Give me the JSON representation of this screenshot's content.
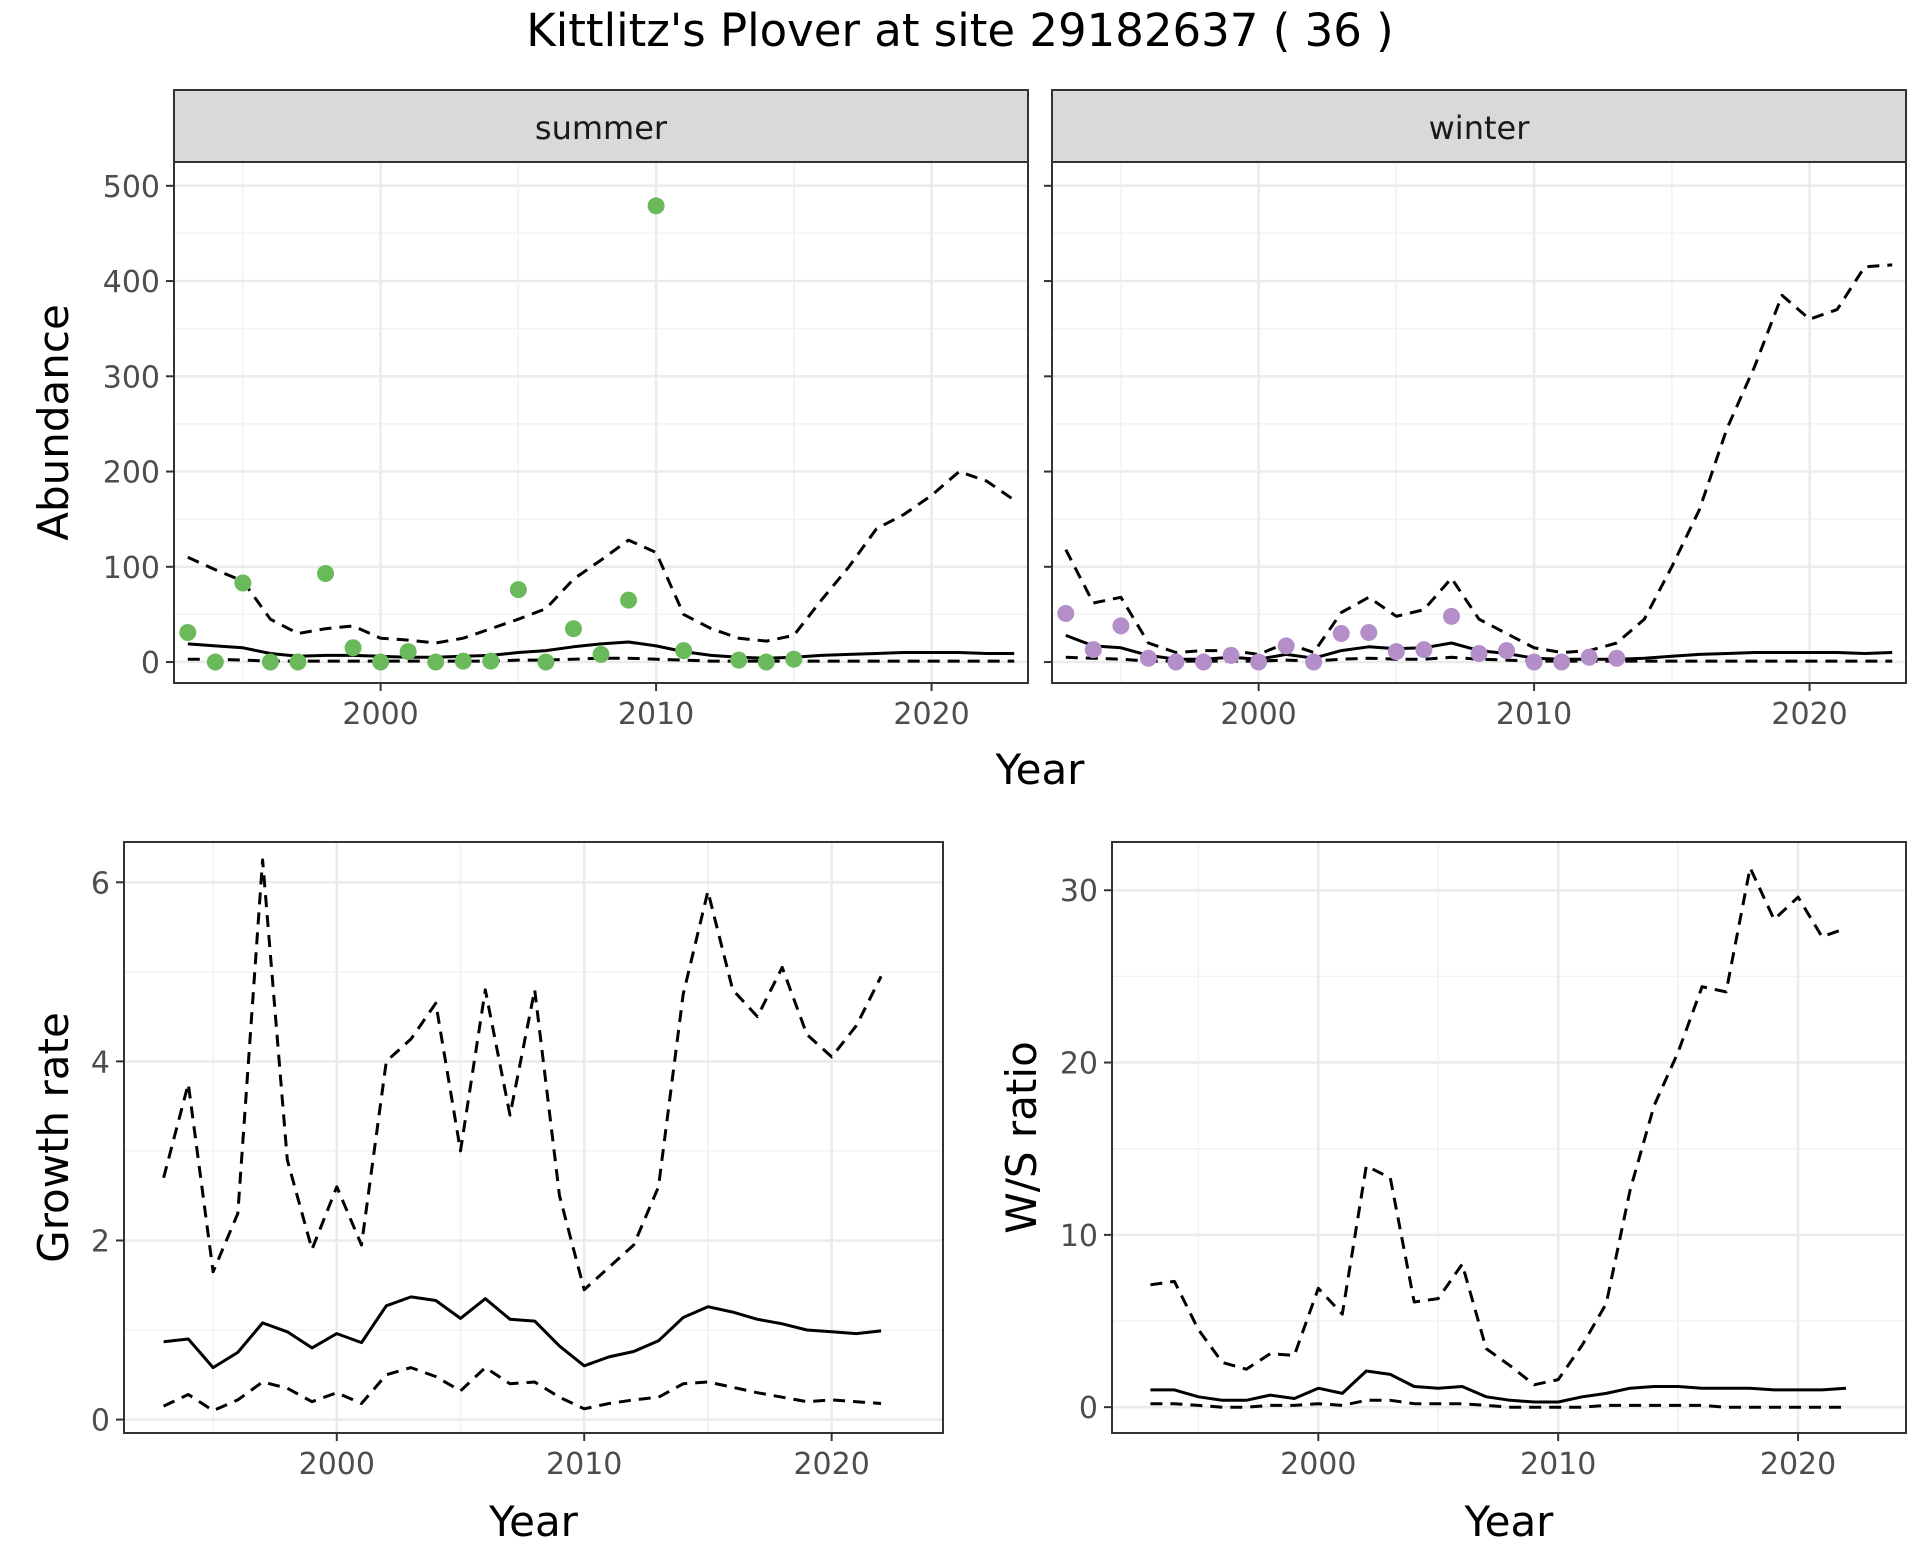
{
  "title": "Kittlitz's Plover at site 29182637 ( 36 )",
  "colors": {
    "summer_points": "#6aba5c",
    "winter_points": "#b48ec9",
    "line": "#000000",
    "strip": "#d9d9d9",
    "grid": "#ebebeb"
  },
  "chart_data": [
    {
      "type": "line",
      "panel": "summer",
      "xlabel": "Year",
      "ylabel": "Abundance",
      "xlim": [
        1992.5,
        2023.5
      ],
      "ylim": [
        -22,
        525
      ],
      "xticks": [
        2000,
        2010,
        2020
      ],
      "yticks": [
        0,
        100,
        200,
        300,
        400,
        500
      ],
      "grid": true,
      "points": {
        "x": [
          1993,
          1994,
          1995,
          1996,
          1997,
          1998,
          1999,
          2000,
          2001,
          2002,
          2003,
          2004,
          2005,
          2006,
          2007,
          2008,
          2009,
          2010,
          2011,
          2013,
          2014,
          2015
        ],
        "y": [
          31,
          0,
          83,
          0,
          0,
          93,
          15,
          0,
          11,
          0,
          1,
          1,
          76,
          0,
          35,
          8,
          65,
          479,
          12,
          2,
          0,
          3
        ]
      },
      "series": [
        {
          "style": "solid",
          "x": [
            1993,
            1994,
            1995,
            1996,
            1997,
            1998,
            1999,
            2000,
            2001,
            2002,
            2003,
            2004,
            2005,
            2006,
            2007,
            2008,
            2009,
            2010,
            2011,
            2012,
            2013,
            2014,
            2015,
            2016,
            2017,
            2018,
            2019,
            2020,
            2021,
            2022,
            2023
          ],
          "y": [
            19,
            17,
            15,
            9,
            6,
            7,
            7,
            6,
            5,
            5,
            6,
            7,
            10,
            12,
            16,
            19,
            21,
            17,
            11,
            7,
            5,
            4,
            5,
            7,
            8,
            9,
            10,
            10,
            10,
            9,
            9
          ]
        },
        {
          "style": "dashed",
          "x": [
            1993,
            1994,
            1995,
            1996,
            1997,
            1998,
            1999,
            2000,
            2001,
            2002,
            2003,
            2004,
            2005,
            2006,
            2007,
            2008,
            2009,
            2010,
            2011,
            2012,
            2013,
            2014,
            2015,
            2016,
            2017,
            2018,
            2019,
            2020,
            2021,
            2022,
            2023
          ],
          "y": [
            110,
            97,
            85,
            45,
            30,
            35,
            38,
            25,
            23,
            20,
            25,
            35,
            45,
            56,
            87,
            107,
            128,
            115,
            50,
            35,
            25,
            22,
            28,
            65,
            100,
            140,
            155,
            175,
            200,
            190,
            170
          ]
        },
        {
          "style": "dashed",
          "x": [
            1993,
            1994,
            1995,
            1996,
            1997,
            1998,
            1999,
            2000,
            2001,
            2002,
            2003,
            2004,
            2005,
            2006,
            2007,
            2008,
            2009,
            2010,
            2011,
            2012,
            2013,
            2014,
            2015,
            2016,
            2017,
            2018,
            2019,
            2020,
            2021,
            2022,
            2023
          ],
          "y": [
            3,
            3,
            2,
            1,
            1,
            1,
            1,
            1,
            1,
            1,
            1,
            1,
            2,
            2,
            3,
            4,
            4,
            3,
            2,
            1,
            1,
            1,
            1,
            1,
            1,
            1,
            1,
            1,
            1,
            1,
            1
          ]
        }
      ]
    },
    {
      "type": "line",
      "panel": "winter",
      "xlabel": "Year",
      "ylabel": "",
      "xlim": [
        1992.5,
        2023.5
      ],
      "ylim": [
        -22,
        525
      ],
      "xticks": [
        2000,
        2010,
        2020
      ],
      "yticks": [
        0,
        100,
        200,
        300,
        400,
        500
      ],
      "grid": true,
      "points": {
        "x": [
          1993,
          1994,
          1995,
          1996,
          1997,
          1998,
          1999,
          2000,
          2001,
          2002,
          2003,
          2004,
          2005,
          2006,
          2007,
          2008,
          2009,
          2010,
          2011,
          2012,
          2013
        ],
        "y": [
          51,
          13,
          38,
          4,
          0,
          0,
          7,
          0,
          17,
          0,
          30,
          31,
          11,
          13,
          48,
          9,
          12,
          0,
          0,
          5,
          4
        ]
      },
      "series": [
        {
          "style": "solid",
          "x": [
            1993,
            1994,
            1995,
            1996,
            1997,
            1998,
            1999,
            2000,
            2001,
            2002,
            2003,
            2004,
            2005,
            2006,
            2007,
            2008,
            2009,
            2010,
            2011,
            2012,
            2013,
            2014,
            2015,
            2016,
            2017,
            2018,
            2019,
            2020,
            2021,
            2022,
            2023
          ],
          "y": [
            28,
            17,
            15,
            7,
            3,
            3,
            5,
            3,
            8,
            4,
            12,
            16,
            14,
            15,
            20,
            12,
            9,
            4,
            3,
            3,
            3,
            4,
            6,
            8,
            9,
            10,
            10,
            10,
            10,
            9,
            10
          ]
        },
        {
          "style": "dashed",
          "x": [
            1993,
            1994,
            1995,
            1996,
            1997,
            1998,
            1999,
            2000,
            2001,
            2002,
            2003,
            2004,
            2005,
            2006,
            2007,
            2008,
            2009,
            2010,
            2011,
            2012,
            2013,
            2014,
            2015,
            2016,
            2017,
            2018,
            2019,
            2020,
            2021,
            2022,
            2023
          ],
          "y": [
            118,
            62,
            68,
            20,
            10,
            12,
            12,
            8,
            20,
            10,
            52,
            68,
            48,
            55,
            88,
            45,
            30,
            15,
            10,
            12,
            20,
            45,
            100,
            160,
            245,
            310,
            385,
            360,
            370,
            415,
            417
          ]
        },
        {
          "style": "dashed",
          "x": [
            1993,
            1994,
            1995,
            1996,
            1997,
            1998,
            1999,
            2000,
            2001,
            2002,
            2003,
            2004,
            2005,
            2006,
            2007,
            2008,
            2009,
            2010,
            2011,
            2012,
            2013,
            2014,
            2015,
            2016,
            2017,
            2018,
            2019,
            2020,
            2021,
            2022,
            2023
          ],
          "y": [
            5,
            4,
            3,
            1,
            1,
            1,
            1,
            1,
            2,
            1,
            3,
            4,
            3,
            3,
            5,
            3,
            2,
            1,
            1,
            1,
            1,
            1,
            1,
            1,
            1,
            1,
            1,
            1,
            1,
            1,
            1
          ]
        }
      ]
    },
    {
      "type": "line",
      "panel": "growth",
      "xlabel": "Year",
      "ylabel": "Growth rate",
      "xlim": [
        1991.4,
        2024.5
      ],
      "ylim": [
        -0.15,
        6.45
      ],
      "xticks": [
        2000,
        2010,
        2020
      ],
      "yticks": [
        0,
        2,
        4,
        6
      ],
      "grid": true,
      "series": [
        {
          "style": "solid",
          "x": [
            1993,
            1994,
            1995,
            1996,
            1997,
            1998,
            1999,
            2000,
            2001,
            2002,
            2003,
            2004,
            2005,
            2006,
            2007,
            2008,
            2009,
            2010,
            2011,
            2012,
            2013,
            2014,
            2015,
            2016,
            2017,
            2018,
            2019,
            2020,
            2021,
            2022
          ],
          "y": [
            0.87,
            0.9,
            0.58,
            0.75,
            1.08,
            0.98,
            0.8,
            0.96,
            0.86,
            1.27,
            1.37,
            1.33,
            1.13,
            1.35,
            1.12,
            1.1,
            0.82,
            0.6,
            0.7,
            0.76,
            0.88,
            1.14,
            1.26,
            1.2,
            1.12,
            1.07,
            1.0,
            0.98,
            0.96,
            0.99
          ]
        },
        {
          "style": "dashed",
          "x": [
            1993,
            1994,
            1995,
            1996,
            1997,
            1998,
            1999,
            2000,
            2001,
            2002,
            2003,
            2004,
            2005,
            2006,
            2007,
            2008,
            2009,
            2010,
            2011,
            2012,
            2013,
            2014,
            2015,
            2016,
            2017,
            2018,
            2019,
            2020,
            2021,
            2022
          ],
          "y": [
            2.7,
            3.75,
            1.65,
            2.3,
            6.25,
            2.9,
            1.9,
            2.6,
            1.95,
            4.0,
            4.25,
            4.65,
            3.0,
            4.8,
            3.4,
            4.8,
            2.5,
            1.45,
            1.7,
            1.95,
            2.6,
            4.75,
            5.9,
            4.8,
            4.5,
            5.05,
            4.3,
            4.05,
            4.4,
            4.95
          ]
        },
        {
          "style": "dashed",
          "x": [
            1993,
            1994,
            1995,
            1996,
            1997,
            1998,
            1999,
            2000,
            2001,
            2002,
            2003,
            2004,
            2005,
            2006,
            2007,
            2008,
            2009,
            2010,
            2011,
            2012,
            2013,
            2014,
            2015,
            2016,
            2017,
            2018,
            2019,
            2020,
            2021,
            2022
          ],
          "y": [
            0.15,
            0.28,
            0.1,
            0.22,
            0.42,
            0.35,
            0.2,
            0.3,
            0.18,
            0.5,
            0.58,
            0.48,
            0.32,
            0.58,
            0.4,
            0.42,
            0.25,
            0.12,
            0.18,
            0.22,
            0.25,
            0.4,
            0.42,
            0.36,
            0.3,
            0.25,
            0.2,
            0.22,
            0.2,
            0.18
          ]
        }
      ]
    },
    {
      "type": "line",
      "panel": "ws_ratio",
      "xlabel": "Year",
      "ylabel": "W/S ratio",
      "xlim": [
        1991.4,
        2024.5
      ],
      "ylim": [
        -1.5,
        32.8
      ],
      "xticks": [
        2000,
        2010,
        2020
      ],
      "yticks": [
        0,
        10,
        20,
        30
      ],
      "grid": true,
      "series": [
        {
          "style": "solid",
          "x": [
            1993,
            1994,
            1995,
            1996,
            1997,
            1998,
            1999,
            2000,
            2001,
            2002,
            2003,
            2004,
            2005,
            2006,
            2007,
            2008,
            2009,
            2010,
            2011,
            2012,
            2013,
            2014,
            2015,
            2016,
            2017,
            2018,
            2019,
            2020,
            2021,
            2022
          ],
          "y": [
            1.0,
            1.0,
            0.6,
            0.4,
            0.4,
            0.7,
            0.5,
            1.1,
            0.8,
            2.1,
            1.9,
            1.2,
            1.1,
            1.2,
            0.6,
            0.4,
            0.3,
            0.3,
            0.6,
            0.8,
            1.1,
            1.2,
            1.2,
            1.1,
            1.1,
            1.1,
            1.0,
            1.0,
            1.0,
            1.1
          ]
        },
        {
          "style": "dashed",
          "x": [
            1993,
            1994,
            1995,
            1996,
            1997,
            1998,
            1999,
            2000,
            2001,
            2002,
            2003,
            2004,
            2005,
            2006,
            2007,
            2008,
            2009,
            2010,
            2011,
            2012,
            2013,
            2014,
            2015,
            2016,
            2017,
            2018,
            2019,
            2020,
            2021,
            2022
          ],
          "y": [
            7.1,
            7.3,
            4.5,
            2.6,
            2.2,
            3.1,
            3.0,
            6.9,
            5.4,
            14.0,
            13.3,
            6.1,
            6.3,
            8.3,
            3.4,
            2.4,
            1.3,
            1.6,
            3.6,
            6.0,
            12.6,
            17.5,
            20.6,
            24.4,
            24.1,
            31.3,
            28.3,
            29.6,
            27.3,
            27.8
          ]
        },
        {
          "style": "dashed",
          "x": [
            1993,
            1994,
            1995,
            1996,
            1997,
            1998,
            1999,
            2000,
            2001,
            2002,
            2003,
            2004,
            2005,
            2006,
            2007,
            2008,
            2009,
            2010,
            2011,
            2012,
            2013,
            2014,
            2015,
            2016,
            2017,
            2018,
            2019,
            2020,
            2021,
            2022
          ],
          "y": [
            0.2,
            0.2,
            0.1,
            0.0,
            0.0,
            0.1,
            0.1,
            0.2,
            0.1,
            0.4,
            0.4,
            0.2,
            0.2,
            0.2,
            0.1,
            0.0,
            0.0,
            0.0,
            0.0,
            0.1,
            0.1,
            0.1,
            0.1,
            0.1,
            0.0,
            0.0,
            0.0,
            0.0,
            0.0,
            0.0
          ]
        }
      ]
    }
  ],
  "labels": {
    "strip_summer": "summer",
    "strip_winter": "winter",
    "top_xlabel": "Year"
  }
}
